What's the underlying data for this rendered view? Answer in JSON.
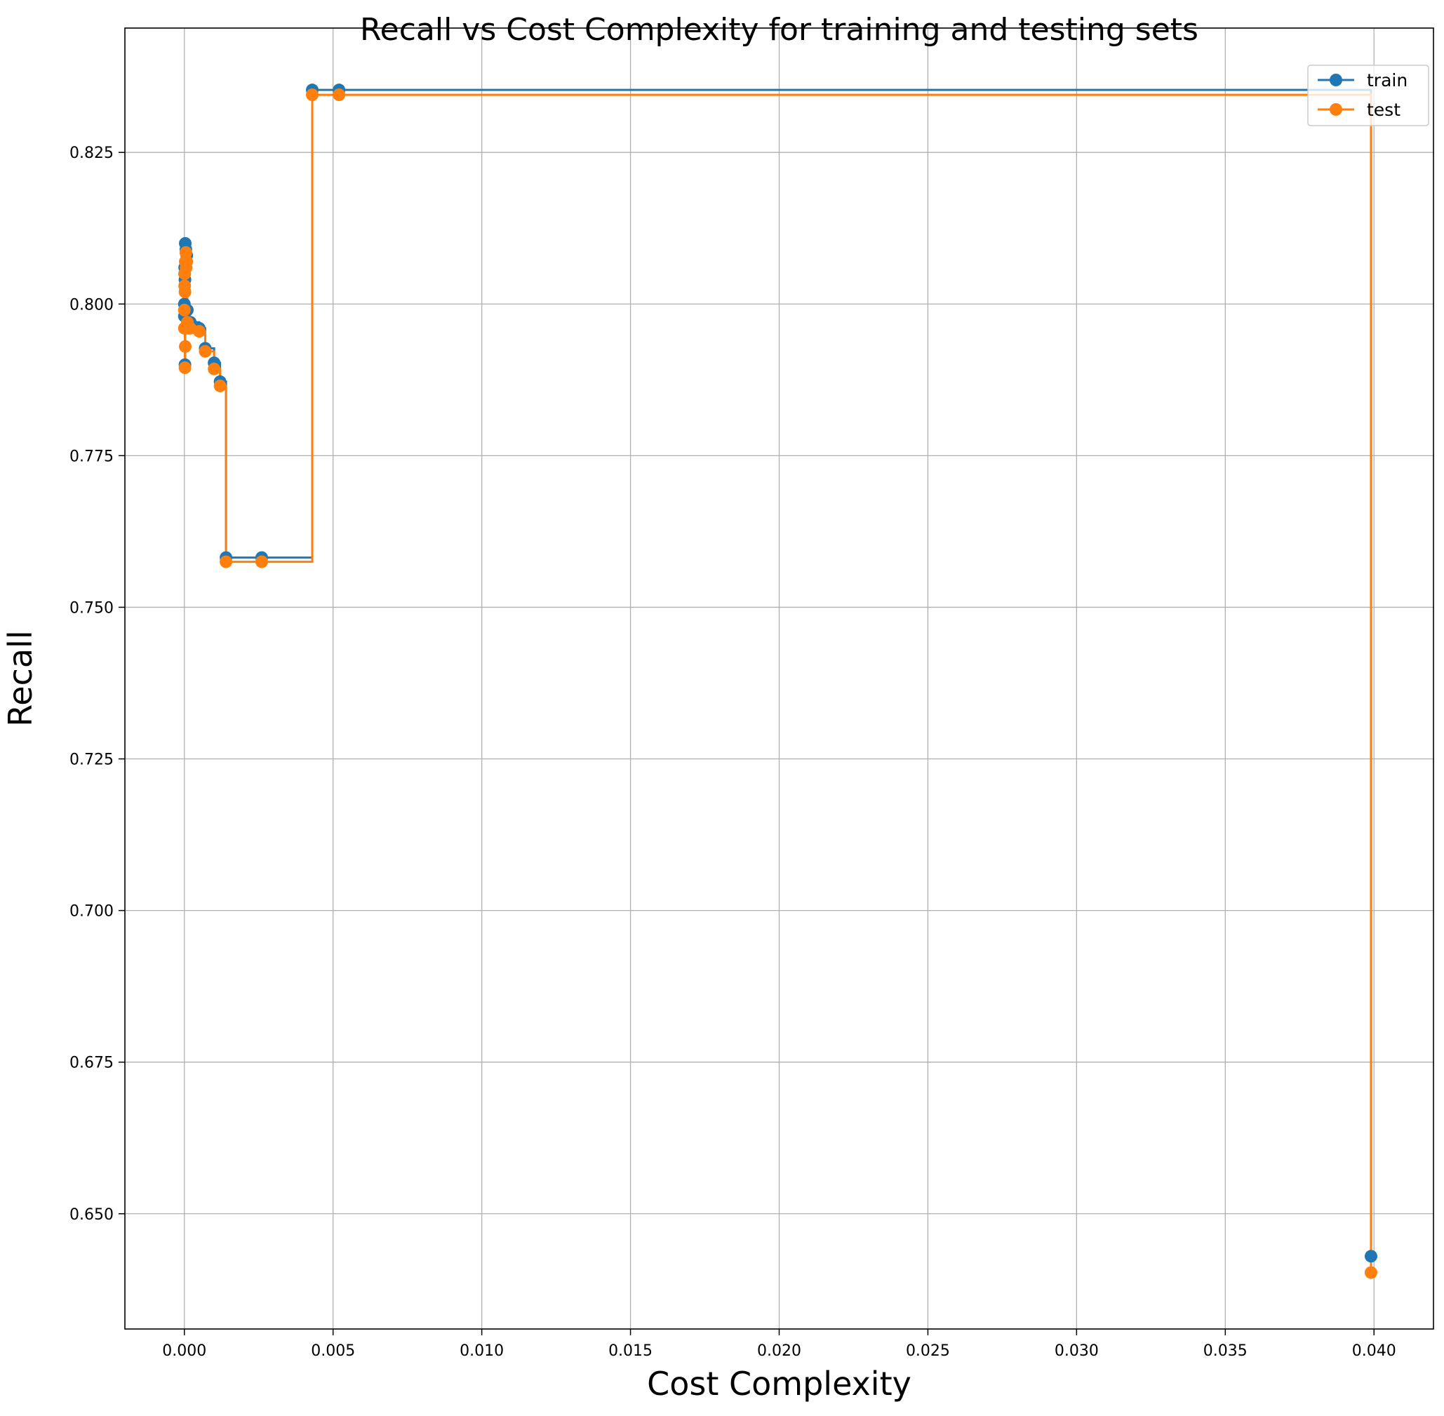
{
  "chart_data": {
    "type": "line",
    "drawstyle": "steps-post",
    "title": "Recall vs Cost Complexity for training and testing sets",
    "xlabel": "Cost Complexity",
    "ylabel": "Recall",
    "xlim": [
      -0.002,
      0.042
    ],
    "ylim": [
      0.631,
      0.8455
    ],
    "xticks": [
      0.0,
      0.005,
      0.01,
      0.015,
      0.02,
      0.025,
      0.03,
      0.035,
      0.04
    ],
    "xtick_labels": [
      "0.000",
      "0.005",
      "0.010",
      "0.015",
      "0.020",
      "0.025",
      "0.030",
      "0.035",
      "0.040"
    ],
    "yticks": [
      0.65,
      0.675,
      0.7,
      0.725,
      0.75,
      0.775,
      0.8,
      0.825
    ],
    "ytick_labels": [
      "0.650",
      "0.675",
      "0.700",
      "0.725",
      "0.750",
      "0.775",
      "0.800",
      "0.825"
    ],
    "grid": true,
    "legend_position": "top-right",
    "series": [
      {
        "name": "train",
        "color": "#1f77b4",
        "x": [
          0.0,
          0.0,
          1e-05,
          1e-05,
          2e-05,
          2e-05,
          3e-05,
          3e-05,
          5e-05,
          6e-05,
          8e-05,
          0.0001,
          0.00015,
          0.0002,
          0.0005,
          0.0007,
          0.001,
          0.0012,
          0.0014,
          0.0026,
          0.0043,
          0.0052,
          0.0399
        ],
        "y": [
          0.798,
          0.8,
          0.805,
          0.806,
          0.804,
          0.79,
          0.796,
          0.81,
          0.809,
          0.807,
          0.808,
          0.799,
          0.797,
          0.797,
          0.796,
          0.7927,
          0.7903,
          0.7872,
          0.7582,
          0.7582,
          0.8353,
          0.8353,
          0.643
        ]
      },
      {
        "name": "test",
        "color": "#ff7f0e",
        "x": [
          0.0,
          0.0,
          1e-05,
          1e-05,
          2e-05,
          2e-05,
          3e-05,
          3e-05,
          5e-05,
          6e-05,
          8e-05,
          0.0001,
          0.00015,
          0.0002,
          0.0005,
          0.0007,
          0.001,
          0.0012,
          0.0014,
          0.0026,
          0.0043,
          0.0052,
          0.0399
        ],
        "y": [
          0.796,
          0.799,
          0.803,
          0.805,
          0.802,
          0.7895,
          0.793,
          0.807,
          0.8085,
          0.806,
          0.807,
          0.797,
          0.796,
          0.796,
          0.7955,
          0.7922,
          0.7893,
          0.7865,
          0.7575,
          0.7575,
          0.8345,
          0.8345,
          0.6403
        ]
      }
    ]
  }
}
